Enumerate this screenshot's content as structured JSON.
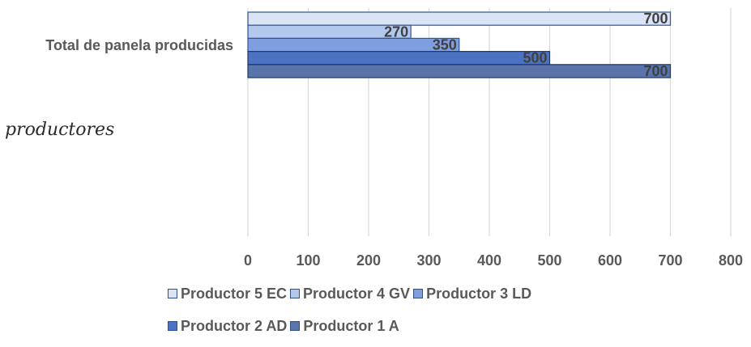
{
  "side_text": "productores",
  "chart_data": {
    "type": "bar",
    "orientation": "horizontal",
    "category": "Total de panela producidas",
    "series": [
      {
        "name": "Productor 5 EC",
        "value": 700,
        "color": "#dbe4f5"
      },
      {
        "name": "Productor 4 GV",
        "value": 270,
        "color": "#b4c7ec"
      },
      {
        "name": "Productor 3 LD",
        "value": 350,
        "color": "#7f9ee0"
      },
      {
        "name": "Productor 2 AD",
        "value": 500,
        "color": "#4b72c3"
      },
      {
        "name": "Productor 1 A",
        "value": 700,
        "color": "#5874ab"
      }
    ],
    "xlim": [
      0,
      800
    ],
    "xticks": [
      "0",
      "100",
      "200",
      "300",
      "400",
      "500",
      "600",
      "700",
      "800"
    ],
    "grid": true,
    "legend_position": "bottom"
  }
}
